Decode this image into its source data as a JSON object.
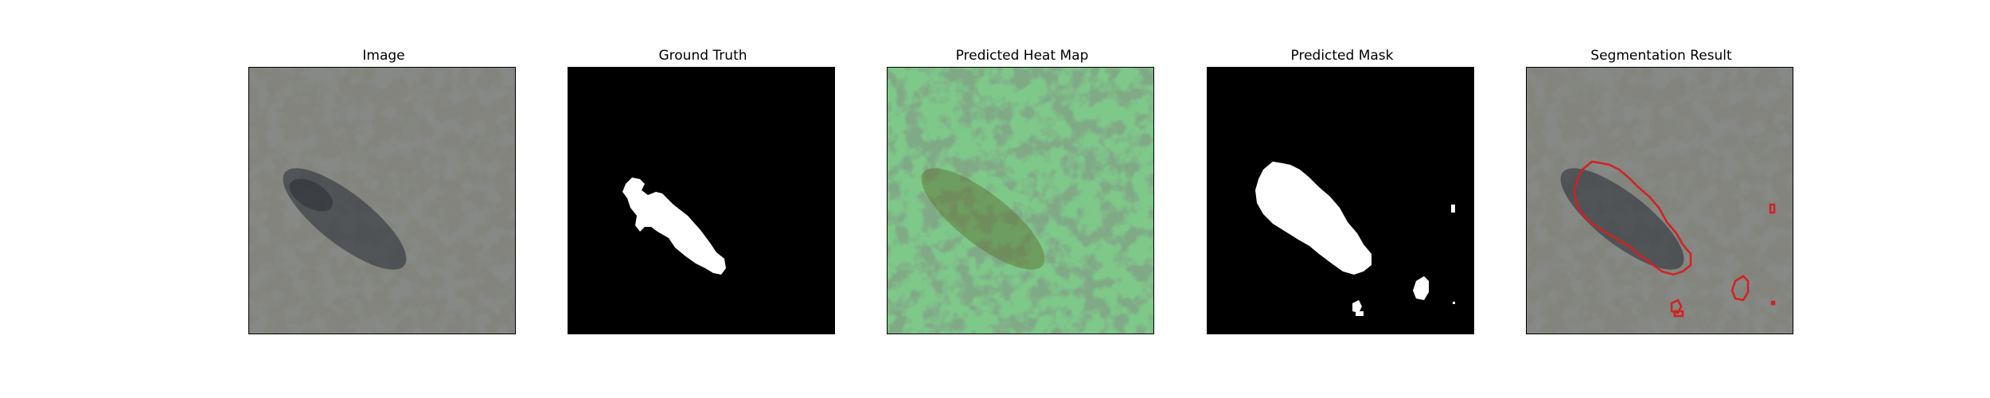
{
  "figure": {
    "panels": [
      {
        "title": "Image",
        "content": "texture-image"
      },
      {
        "title": "Ground Truth",
        "content": "ground-truth-mask"
      },
      {
        "title": "Predicted Heat Map",
        "content": "heatmap-overlay"
      },
      {
        "title": "Predicted Mask",
        "content": "predicted-mask"
      },
      {
        "title": "Segmentation Result",
        "content": "segmentation-overlay"
      }
    ],
    "colors": {
      "background": "#ffffff",
      "mask_fg": "#ffffff",
      "mask_bg": "#000000",
      "heat_tint": "#7ec98a",
      "contour": "#d42020",
      "texture_light": "#9a9d93",
      "texture_dark": "#3b3c3a"
    }
  }
}
